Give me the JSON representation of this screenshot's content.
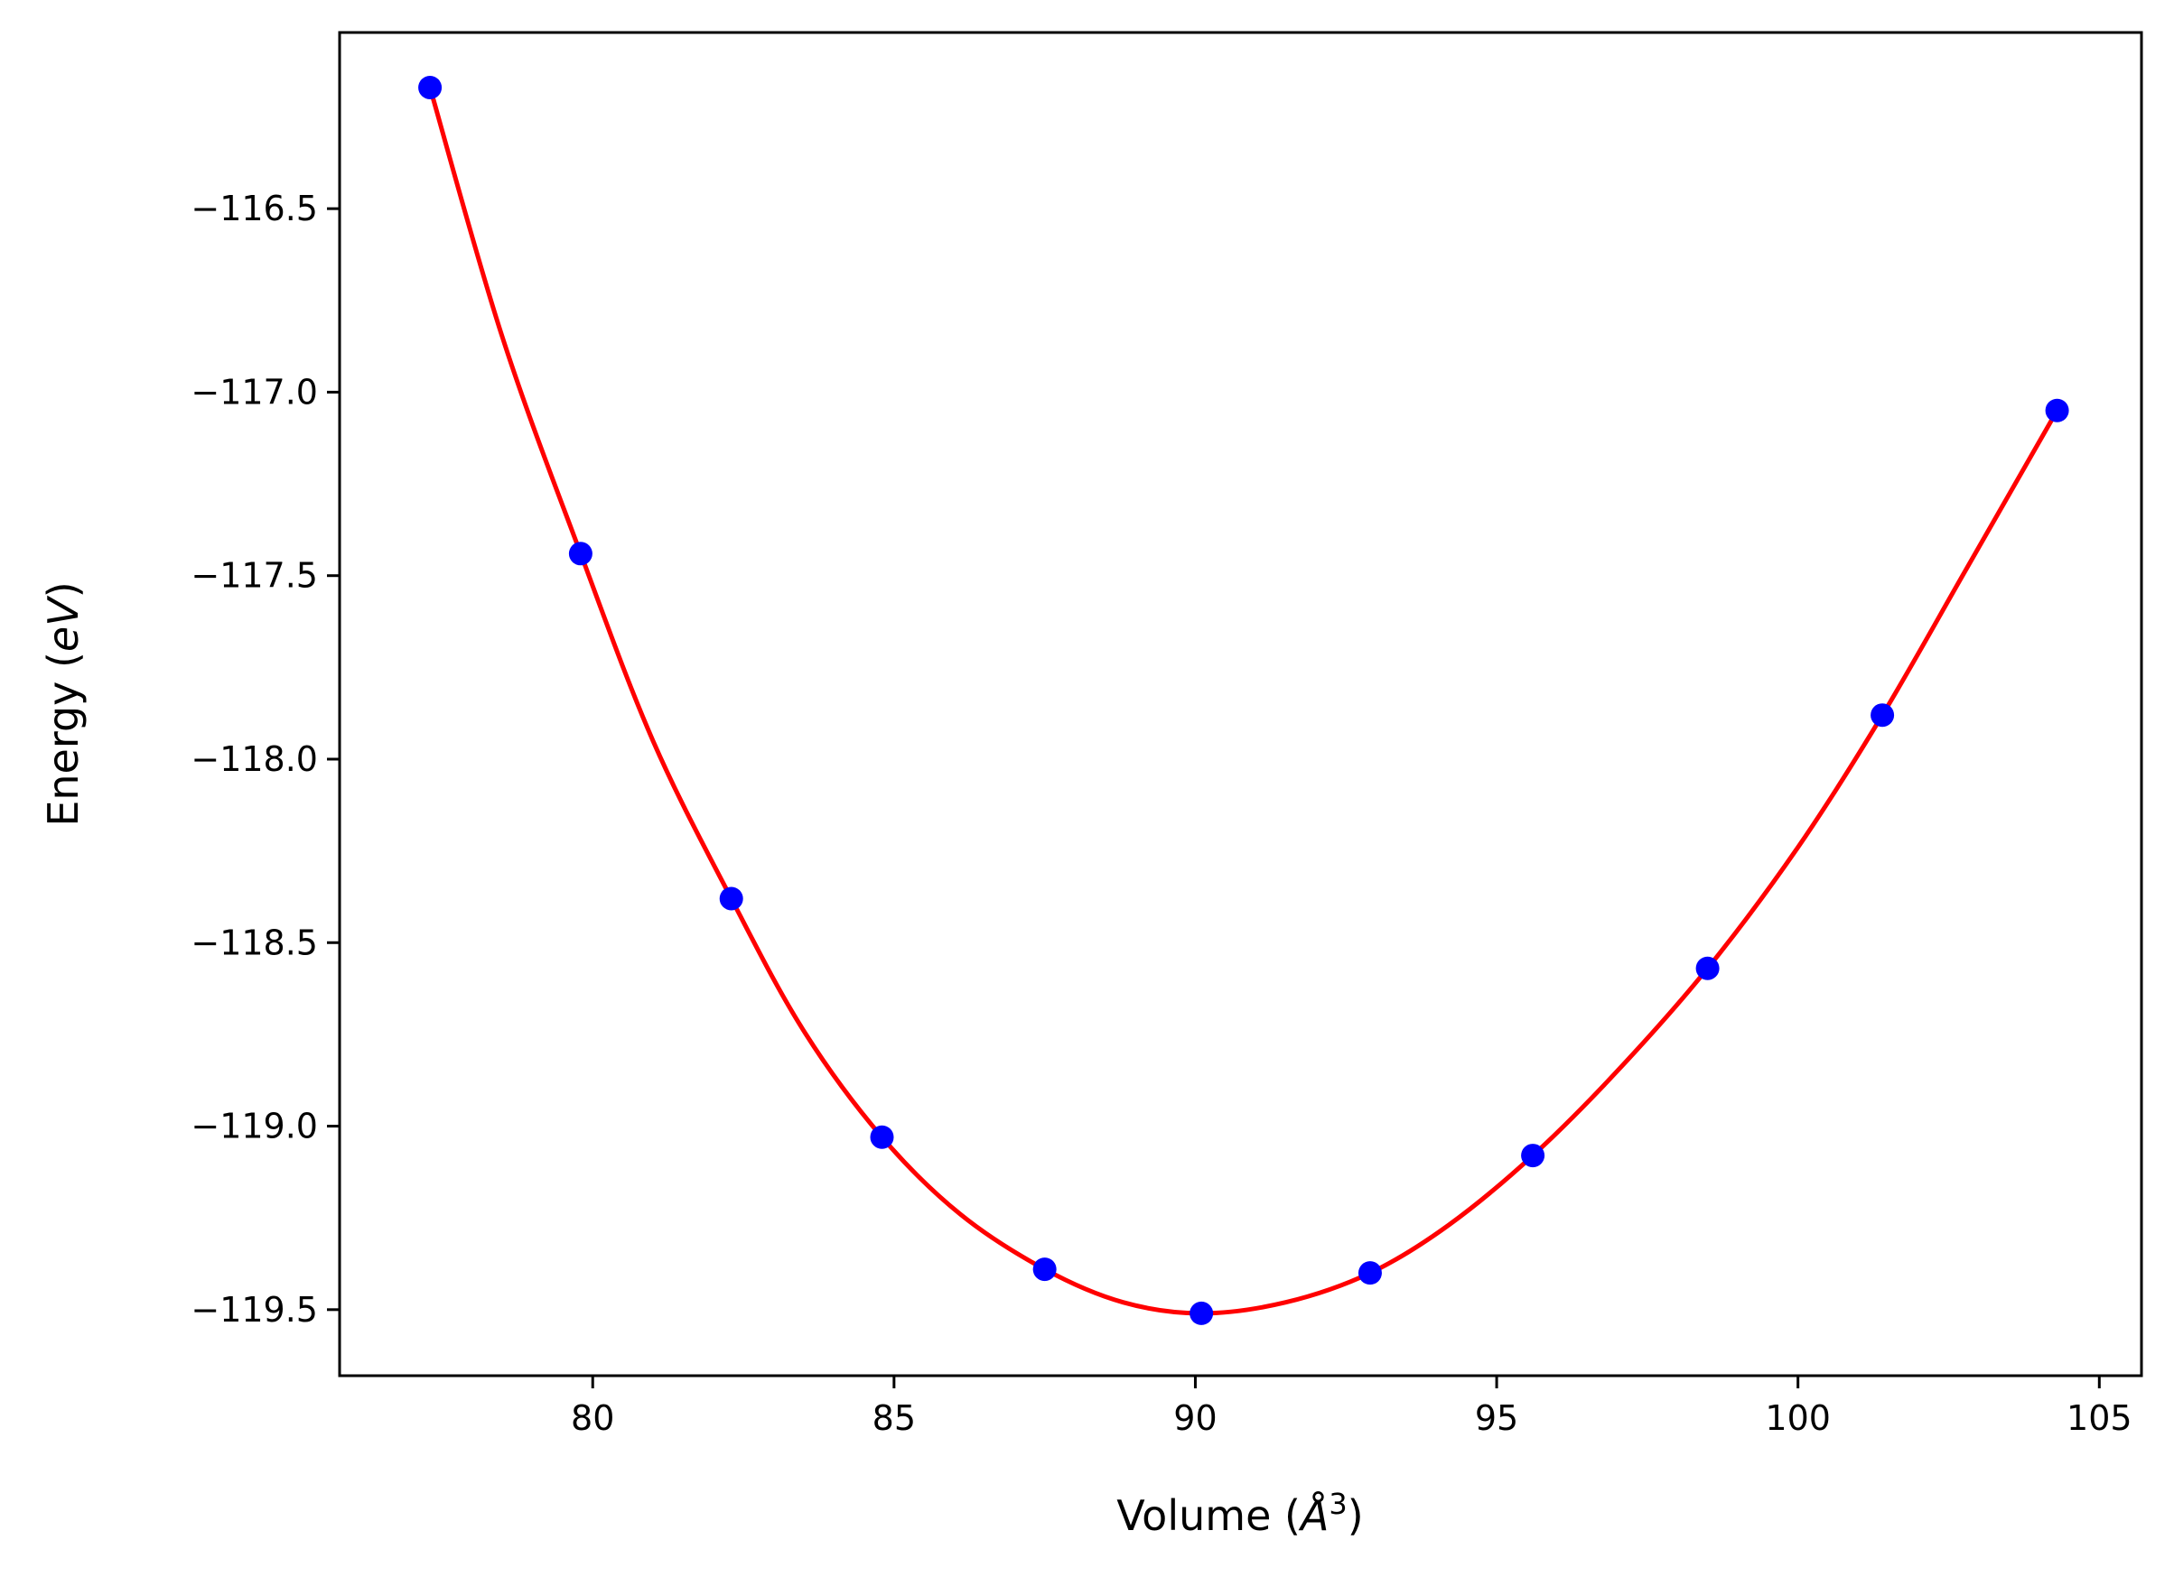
{
  "chart_data": {
    "type": "line",
    "xlabel": {
      "prefix": "Volume (",
      "symbol": "Å",
      "superscript": "3",
      "suffix": ")"
    },
    "ylabel": {
      "prefix": "Energy (",
      "unit": "eV",
      "suffix": ")"
    },
    "xlim": [
      75.8,
      105.7
    ],
    "ylim": [
      -119.68,
      -116.02
    ],
    "xticks": [
      80,
      85,
      90,
      95,
      100,
      105
    ],
    "xtick_labels": [
      "80",
      "85",
      "90",
      "95",
      "100",
      "105"
    ],
    "yticks": [
      -116.5,
      -117.0,
      -117.5,
      -118.0,
      -118.5,
      -119.0,
      -119.5
    ],
    "ytick_labels": [
      "−116.5",
      "−117.0",
      "−117.5",
      "−118.0",
      "−118.5",
      "−119.0",
      "−119.5"
    ],
    "grid": false,
    "legend": "none",
    "series": [
      {
        "kind": "scatter",
        "color": "#0000ff",
        "x": [
          77.3,
          79.8,
          82.3,
          84.8,
          87.5,
          90.1,
          92.9,
          95.6,
          98.5,
          101.4,
          104.3
        ],
        "y": [
          -116.17,
          -117.44,
          -118.38,
          -119.03,
          -119.39,
          -119.51,
          -119.4,
          -119.08,
          -118.57,
          -117.88,
          -117.05
        ]
      },
      {
        "kind": "fit-curve",
        "color": "#ff0000",
        "x": [
          77.3,
          78.5,
          79.8,
          81.0,
          82.3,
          83.5,
          84.8,
          86.1,
          87.5,
          88.8,
          90.1,
          91.5,
          92.9,
          94.2,
          95.6,
          97.0,
          98.5,
          100.0,
          101.4,
          102.8,
          104.3
        ],
        "y": [
          -116.17,
          -116.85,
          -117.44,
          -117.95,
          -118.38,
          -118.74,
          -119.03,
          -119.24,
          -119.39,
          -119.48,
          -119.51,
          -119.48,
          -119.4,
          -119.27,
          -119.08,
          -118.85,
          -118.57,
          -118.24,
          -117.88,
          -117.48,
          -117.05
        ]
      }
    ]
  }
}
